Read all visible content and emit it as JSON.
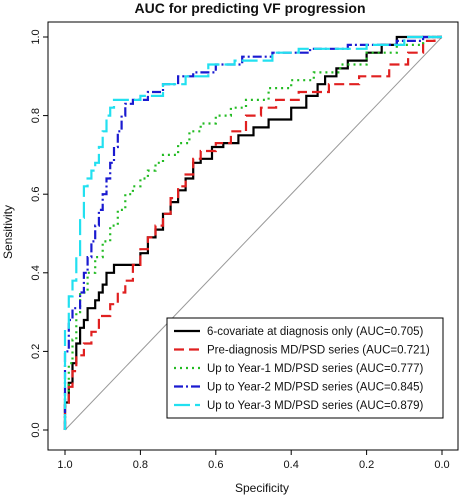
{
  "chart_data": {
    "type": "line",
    "title": "AUC for predicting VF progression",
    "xlabel": "Specificity",
    "ylabel": "Sensitivity",
    "xlim": [
      1.0,
      0.0
    ],
    "ylim": [
      0.0,
      1.0
    ],
    "x_reversed": true,
    "x_ticks": [
      "1.0",
      "0.8",
      "0.6",
      "0.4",
      "0.2",
      "0.0"
    ],
    "x_tick_values": [
      1.0,
      0.8,
      0.6,
      0.4,
      0.2,
      0.0
    ],
    "y_ticks": [
      "0.0",
      "0.2",
      "0.4",
      "0.6",
      "0.8",
      "1.0"
    ],
    "y_tick_values": [
      0.0,
      0.2,
      0.4,
      0.6,
      0.8,
      1.0
    ],
    "grid": false,
    "reference_line": true,
    "legend_position": "bottom-right",
    "series": [
      {
        "name": "6-covariate at diagnosis only (AUC=0.705)",
        "color": "#000000",
        "dash": "solid",
        "points": [
          [
            1.0,
            0.0
          ],
          [
            1.0,
            0.07
          ],
          [
            0.99,
            0.07
          ],
          [
            0.99,
            0.12
          ],
          [
            0.98,
            0.12
          ],
          [
            0.98,
            0.17
          ],
          [
            0.97,
            0.17
          ],
          [
            0.97,
            0.22
          ],
          [
            0.96,
            0.22
          ],
          [
            0.96,
            0.26
          ],
          [
            0.95,
            0.26
          ],
          [
            0.95,
            0.28
          ],
          [
            0.94,
            0.28
          ],
          [
            0.94,
            0.31
          ],
          [
            0.92,
            0.31
          ],
          [
            0.92,
            0.33
          ],
          [
            0.91,
            0.33
          ],
          [
            0.91,
            0.35
          ],
          [
            0.9,
            0.35
          ],
          [
            0.9,
            0.37
          ],
          [
            0.89,
            0.37
          ],
          [
            0.89,
            0.4
          ],
          [
            0.87,
            0.4
          ],
          [
            0.87,
            0.42
          ],
          [
            0.8,
            0.42
          ],
          [
            0.8,
            0.45
          ],
          [
            0.78,
            0.45
          ],
          [
            0.78,
            0.49
          ],
          [
            0.76,
            0.49
          ],
          [
            0.76,
            0.51
          ],
          [
            0.74,
            0.51
          ],
          [
            0.74,
            0.55
          ],
          [
            0.72,
            0.55
          ],
          [
            0.72,
            0.58
          ],
          [
            0.7,
            0.58
          ],
          [
            0.7,
            0.61
          ],
          [
            0.68,
            0.61
          ],
          [
            0.68,
            0.64
          ],
          [
            0.66,
            0.64
          ],
          [
            0.66,
            0.68
          ],
          [
            0.64,
            0.68
          ],
          [
            0.64,
            0.69
          ],
          [
            0.61,
            0.69
          ],
          [
            0.61,
            0.72
          ],
          [
            0.58,
            0.72
          ],
          [
            0.58,
            0.73
          ],
          [
            0.54,
            0.73
          ],
          [
            0.54,
            0.75
          ],
          [
            0.5,
            0.75
          ],
          [
            0.5,
            0.77
          ],
          [
            0.46,
            0.77
          ],
          [
            0.46,
            0.79
          ],
          [
            0.4,
            0.79
          ],
          [
            0.4,
            0.82
          ],
          [
            0.36,
            0.82
          ],
          [
            0.36,
            0.85
          ],
          [
            0.33,
            0.85
          ],
          [
            0.33,
            0.88
          ],
          [
            0.31,
            0.88
          ],
          [
            0.31,
            0.9
          ],
          [
            0.28,
            0.9
          ],
          [
            0.28,
            0.92
          ],
          [
            0.25,
            0.92
          ],
          [
            0.25,
            0.94
          ],
          [
            0.2,
            0.94
          ],
          [
            0.2,
            0.96
          ],
          [
            0.16,
            0.96
          ],
          [
            0.16,
            0.98
          ],
          [
            0.12,
            0.98
          ],
          [
            0.12,
            1.0
          ],
          [
            0.0,
            1.0
          ]
        ]
      },
      {
        "name": "Pre-diagnosis MD/PSD series (AUC=0.721)",
        "color": "#e02020",
        "dash": "10,5",
        "points": [
          [
            1.0,
            0.0
          ],
          [
            1.0,
            0.06
          ],
          [
            0.99,
            0.06
          ],
          [
            0.99,
            0.11
          ],
          [
            0.98,
            0.11
          ],
          [
            0.98,
            0.15
          ],
          [
            0.97,
            0.15
          ],
          [
            0.97,
            0.19
          ],
          [
            0.95,
            0.19
          ],
          [
            0.95,
            0.22
          ],
          [
            0.93,
            0.22
          ],
          [
            0.93,
            0.25
          ],
          [
            0.91,
            0.25
          ],
          [
            0.91,
            0.29
          ],
          [
            0.88,
            0.29
          ],
          [
            0.88,
            0.32
          ],
          [
            0.86,
            0.32
          ],
          [
            0.86,
            0.35
          ],
          [
            0.84,
            0.35
          ],
          [
            0.84,
            0.38
          ],
          [
            0.82,
            0.38
          ],
          [
            0.82,
            0.42
          ],
          [
            0.8,
            0.42
          ],
          [
            0.8,
            0.46
          ],
          [
            0.78,
            0.46
          ],
          [
            0.78,
            0.49
          ],
          [
            0.76,
            0.49
          ],
          [
            0.76,
            0.52
          ],
          [
            0.74,
            0.52
          ],
          [
            0.74,
            0.55
          ],
          [
            0.72,
            0.55
          ],
          [
            0.72,
            0.59
          ],
          [
            0.7,
            0.59
          ],
          [
            0.7,
            0.62
          ],
          [
            0.68,
            0.62
          ],
          [
            0.68,
            0.65
          ],
          [
            0.66,
            0.65
          ],
          [
            0.66,
            0.69
          ],
          [
            0.64,
            0.69
          ],
          [
            0.64,
            0.71
          ],
          [
            0.6,
            0.71
          ],
          [
            0.6,
            0.73
          ],
          [
            0.56,
            0.73
          ],
          [
            0.56,
            0.76
          ],
          [
            0.52,
            0.76
          ],
          [
            0.52,
            0.8
          ],
          [
            0.48,
            0.8
          ],
          [
            0.48,
            0.82
          ],
          [
            0.44,
            0.82
          ],
          [
            0.44,
            0.84
          ],
          [
            0.38,
            0.84
          ],
          [
            0.38,
            0.86
          ],
          [
            0.3,
            0.86
          ],
          [
            0.3,
            0.88
          ],
          [
            0.22,
            0.88
          ],
          [
            0.22,
            0.9
          ],
          [
            0.14,
            0.9
          ],
          [
            0.14,
            0.93
          ],
          [
            0.09,
            0.93
          ],
          [
            0.09,
            0.96
          ],
          [
            0.05,
            0.96
          ],
          [
            0.05,
            0.99
          ],
          [
            0.02,
            0.99
          ],
          [
            0.02,
            1.0
          ],
          [
            0.0,
            1.0
          ]
        ]
      },
      {
        "name": "Up to Year-1 MD/PSD series (AUC=0.777)",
        "color": "#22bb22",
        "dash": "2,4",
        "points": [
          [
            1.0,
            0.0
          ],
          [
            1.0,
            0.1
          ],
          [
            0.99,
            0.1
          ],
          [
            0.99,
            0.17
          ],
          [
            0.98,
            0.17
          ],
          [
            0.98,
            0.23
          ],
          [
            0.97,
            0.23
          ],
          [
            0.97,
            0.3
          ],
          [
            0.96,
            0.3
          ],
          [
            0.96,
            0.35
          ],
          [
            0.94,
            0.35
          ],
          [
            0.94,
            0.4
          ],
          [
            0.92,
            0.4
          ],
          [
            0.92,
            0.44
          ],
          [
            0.9,
            0.44
          ],
          [
            0.9,
            0.48
          ],
          [
            0.88,
            0.48
          ],
          [
            0.88,
            0.52
          ],
          [
            0.86,
            0.52
          ],
          [
            0.86,
            0.56
          ],
          [
            0.84,
            0.56
          ],
          [
            0.84,
            0.6
          ],
          [
            0.82,
            0.6
          ],
          [
            0.82,
            0.62
          ],
          [
            0.8,
            0.62
          ],
          [
            0.8,
            0.64
          ],
          [
            0.78,
            0.64
          ],
          [
            0.78,
            0.66
          ],
          [
            0.76,
            0.66
          ],
          [
            0.76,
            0.68
          ],
          [
            0.74,
            0.68
          ],
          [
            0.74,
            0.7
          ],
          [
            0.7,
            0.7
          ],
          [
            0.7,
            0.73
          ],
          [
            0.67,
            0.73
          ],
          [
            0.67,
            0.76
          ],
          [
            0.64,
            0.76
          ],
          [
            0.64,
            0.78
          ],
          [
            0.6,
            0.78
          ],
          [
            0.6,
            0.8
          ],
          [
            0.56,
            0.8
          ],
          [
            0.56,
            0.82
          ],
          [
            0.52,
            0.82
          ],
          [
            0.52,
            0.84
          ],
          [
            0.46,
            0.84
          ],
          [
            0.46,
            0.87
          ],
          [
            0.4,
            0.87
          ],
          [
            0.4,
            0.89
          ],
          [
            0.34,
            0.89
          ],
          [
            0.34,
            0.91
          ],
          [
            0.27,
            0.91
          ],
          [
            0.27,
            0.93
          ],
          [
            0.2,
            0.93
          ],
          [
            0.2,
            0.96
          ],
          [
            0.12,
            0.96
          ],
          [
            0.12,
            0.98
          ],
          [
            0.05,
            0.98
          ],
          [
            0.05,
            1.0
          ],
          [
            0.0,
            1.0
          ]
        ]
      },
      {
        "name": "Up to Year-2 MD/PSD series (AUC=0.845)",
        "color": "#1a1ad0",
        "dash": "9,3,2,3",
        "points": [
          [
            1.0,
            0.0
          ],
          [
            1.0,
            0.2
          ],
          [
            0.99,
            0.2
          ],
          [
            0.99,
            0.28
          ],
          [
            0.98,
            0.28
          ],
          [
            0.98,
            0.31
          ],
          [
            0.96,
            0.31
          ],
          [
            0.96,
            0.35
          ],
          [
            0.95,
            0.35
          ],
          [
            0.95,
            0.4
          ],
          [
            0.94,
            0.4
          ],
          [
            0.94,
            0.44
          ],
          [
            0.93,
            0.44
          ],
          [
            0.93,
            0.48
          ],
          [
            0.92,
            0.48
          ],
          [
            0.92,
            0.52
          ],
          [
            0.91,
            0.52
          ],
          [
            0.91,
            0.56
          ],
          [
            0.9,
            0.56
          ],
          [
            0.9,
            0.6
          ],
          [
            0.89,
            0.6
          ],
          [
            0.89,
            0.64
          ],
          [
            0.88,
            0.64
          ],
          [
            0.88,
            0.68
          ],
          [
            0.87,
            0.68
          ],
          [
            0.87,
            0.72
          ],
          [
            0.86,
            0.72
          ],
          [
            0.86,
            0.76
          ],
          [
            0.85,
            0.76
          ],
          [
            0.85,
            0.8
          ],
          [
            0.84,
            0.8
          ],
          [
            0.84,
            0.83
          ],
          [
            0.82,
            0.83
          ],
          [
            0.82,
            0.84
          ],
          [
            0.78,
            0.84
          ],
          [
            0.78,
            0.86
          ],
          [
            0.74,
            0.86
          ],
          [
            0.74,
            0.88
          ],
          [
            0.7,
            0.88
          ],
          [
            0.7,
            0.9
          ],
          [
            0.66,
            0.9
          ],
          [
            0.66,
            0.91
          ],
          [
            0.6,
            0.91
          ],
          [
            0.6,
            0.93
          ],
          [
            0.53,
            0.93
          ],
          [
            0.53,
            0.95
          ],
          [
            0.45,
            0.95
          ],
          [
            0.45,
            0.96
          ],
          [
            0.35,
            0.96
          ],
          [
            0.35,
            0.97
          ],
          [
            0.25,
            0.97
          ],
          [
            0.25,
            0.98
          ],
          [
            0.12,
            0.98
          ],
          [
            0.12,
            0.99
          ],
          [
            0.05,
            0.99
          ],
          [
            0.05,
            1.0
          ],
          [
            0.0,
            1.0
          ]
        ]
      },
      {
        "name": "Up to Year-3 MD/PSD series (AUC=0.879)",
        "color": "#22e0f0",
        "dash": "16,5",
        "points": [
          [
            1.0,
            0.0
          ],
          [
            1.0,
            0.26
          ],
          [
            0.99,
            0.26
          ],
          [
            0.99,
            0.34
          ],
          [
            0.98,
            0.34
          ],
          [
            0.98,
            0.38
          ],
          [
            0.97,
            0.38
          ],
          [
            0.97,
            0.44
          ],
          [
            0.96,
            0.44
          ],
          [
            0.96,
            0.54
          ],
          [
            0.95,
            0.54
          ],
          [
            0.95,
            0.62
          ],
          [
            0.94,
            0.62
          ],
          [
            0.94,
            0.64
          ],
          [
            0.93,
            0.64
          ],
          [
            0.93,
            0.66
          ],
          [
            0.92,
            0.66
          ],
          [
            0.92,
            0.68
          ],
          [
            0.91,
            0.68
          ],
          [
            0.91,
            0.72
          ],
          [
            0.9,
            0.72
          ],
          [
            0.9,
            0.76
          ],
          [
            0.89,
            0.76
          ],
          [
            0.89,
            0.8
          ],
          [
            0.88,
            0.8
          ],
          [
            0.88,
            0.82
          ],
          [
            0.87,
            0.82
          ],
          [
            0.87,
            0.84
          ],
          [
            0.8,
            0.84
          ],
          [
            0.8,
            0.85
          ],
          [
            0.74,
            0.85
          ],
          [
            0.74,
            0.88
          ],
          [
            0.68,
            0.88
          ],
          [
            0.68,
            0.9
          ],
          [
            0.62,
            0.9
          ],
          [
            0.62,
            0.93
          ],
          [
            0.55,
            0.93
          ],
          [
            0.55,
            0.94
          ],
          [
            0.45,
            0.94
          ],
          [
            0.45,
            0.96
          ],
          [
            0.38,
            0.96
          ],
          [
            0.38,
            0.97
          ],
          [
            0.2,
            0.97
          ],
          [
            0.2,
            0.98
          ],
          [
            0.1,
            0.98
          ],
          [
            0.1,
            1.0
          ],
          [
            0.0,
            1.0
          ]
        ]
      }
    ]
  }
}
